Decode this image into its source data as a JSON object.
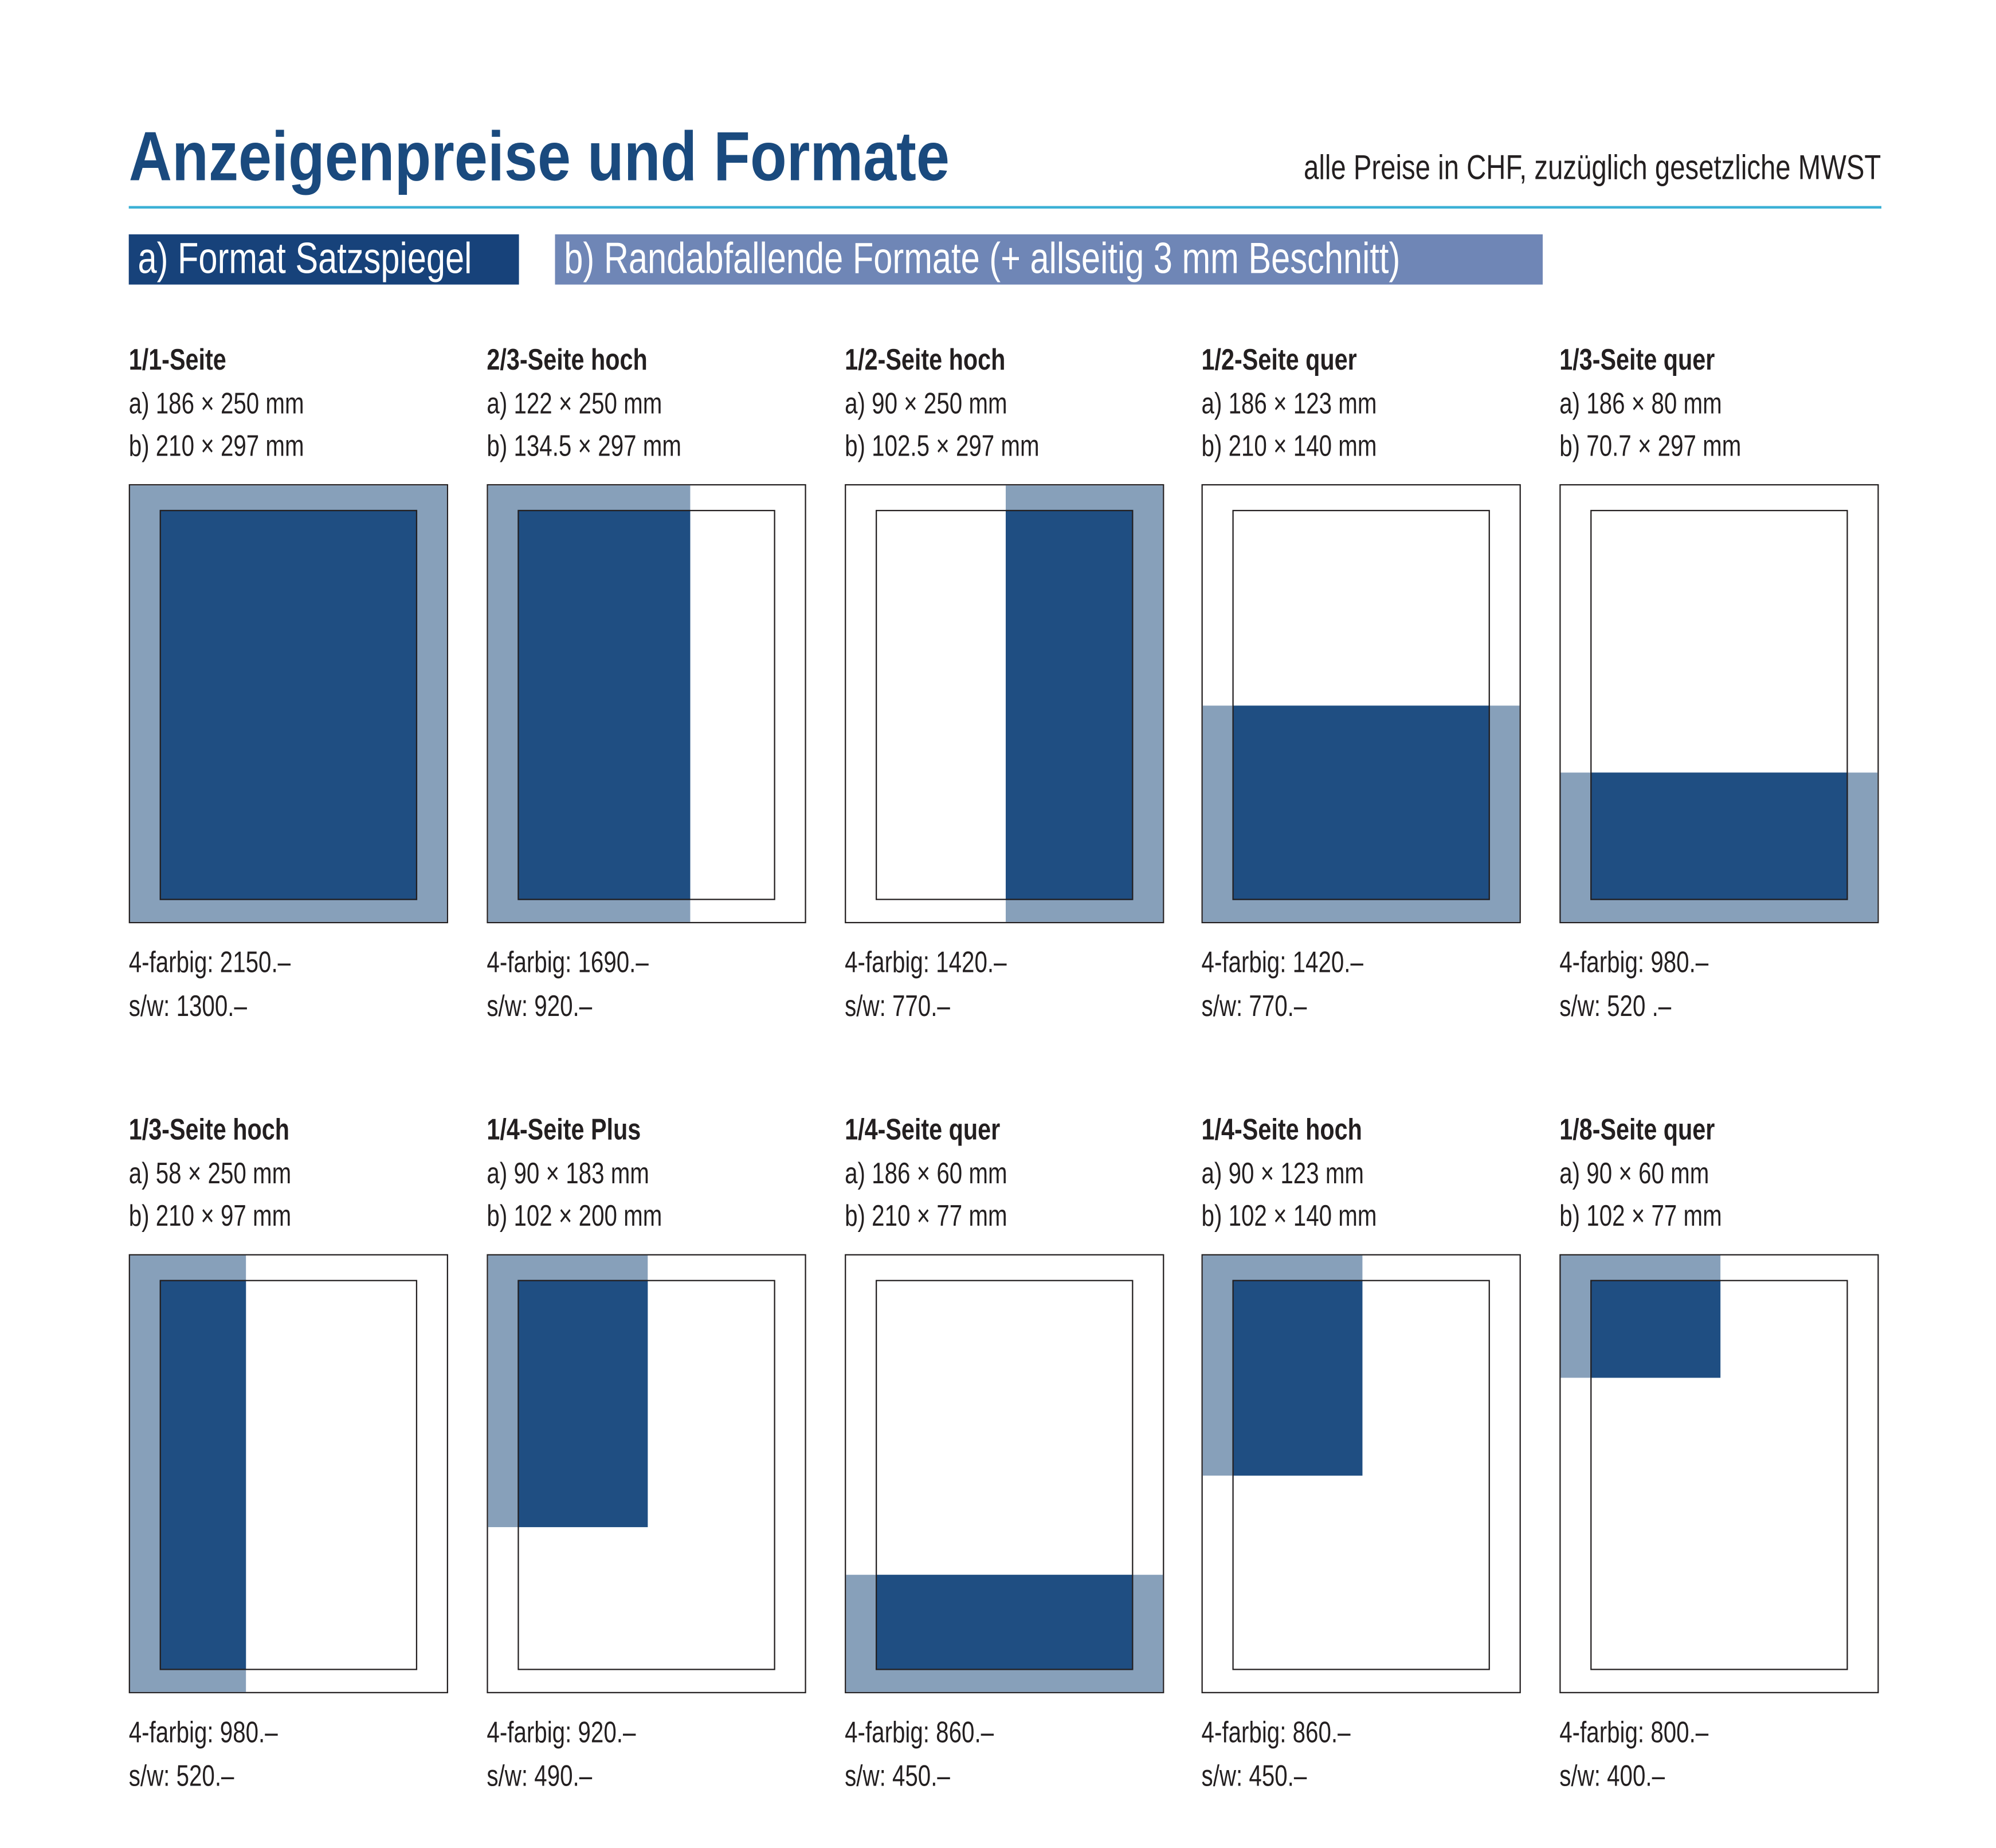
{
  "title": "Anzeigenpreise und Formate",
  "note": "alle Preise in CHF, zuzüglich gesetzliche MWST",
  "tabs": {
    "a": "a) Format Satzspiegel",
    "b": "b) Randabfallende Formate (+ allseitig 3 mm Beschnitt)"
  },
  "colors": {
    "title": "#1a4a7e",
    "rule": "#3bb1d6",
    "tab_a": "#17427a",
    "tab_b": "#6f86b6",
    "ad_area_satzspiegel": "#1f4e82",
    "ad_area_bleed": "#87a0ba"
  },
  "formats": [
    {
      "name": "1/1-Seite",
      "a": "a) 186 × 250 mm",
      "b": "b) 210 × 297 mm",
      "color": "4-farbig: 2150.–",
      "bw": "s/w: 1300.–"
    },
    {
      "name": "2/3-Seite hoch",
      "a": "a) 122 × 250 mm",
      "b": "b) 134.5 × 297 mm",
      "color": "4-farbig: 1690.–",
      "bw": "s/w: 920.–"
    },
    {
      "name": "1/2-Seite hoch",
      "a": "a) 90 × 250 mm",
      "b": "b) 102.5 × 297 mm",
      "color": "4-farbig: 1420.–",
      "bw": "s/w: 770.–"
    },
    {
      "name": "1/2-Seite quer",
      "a": "a) 186 × 123 mm",
      "b": "b) 210 × 140 mm",
      "color": "4-farbig: 1420.–",
      "bw": "s/w: 770.–"
    },
    {
      "name": "1/3-Seite quer",
      "a": "a) 186 × 80 mm",
      "b": "b) 70.7 × 297 mm",
      "color": "4-farbig: 980.–",
      "bw": "s/w: 520 .–"
    },
    {
      "name": "1/3-Seite hoch",
      "a": "a) 58 × 250 mm",
      "b": "b) 210 × 97 mm",
      "color": "4-farbig: 980.–",
      "bw": "s/w: 520.–"
    },
    {
      "name": "1/4-Seite Plus",
      "a": "a) 90 × 183 mm",
      "b": "b) 102 × 200 mm",
      "color": "4-farbig: 920.–",
      "bw": "s/w: 490.–"
    },
    {
      "name": "1/4-Seite quer",
      "a": "a) 186 × 60 mm",
      "b": "b) 210 × 77 mm",
      "color": "4-farbig: 860.–",
      "bw": "s/w: 450.–"
    },
    {
      "name": "1/4-Seite hoch",
      "a": "a) 90 × 123 mm",
      "b": "b) 102 × 140 mm",
      "color": "4-farbig: 860.–",
      "bw": "s/w: 450.–"
    },
    {
      "name": "1/8-Seite quer",
      "a": "a) 90 × 60 mm",
      "b": "b) 102 × 77 mm",
      "color": "4-farbig: 800.–",
      "bw": "s/w: 400.–"
    }
  ]
}
